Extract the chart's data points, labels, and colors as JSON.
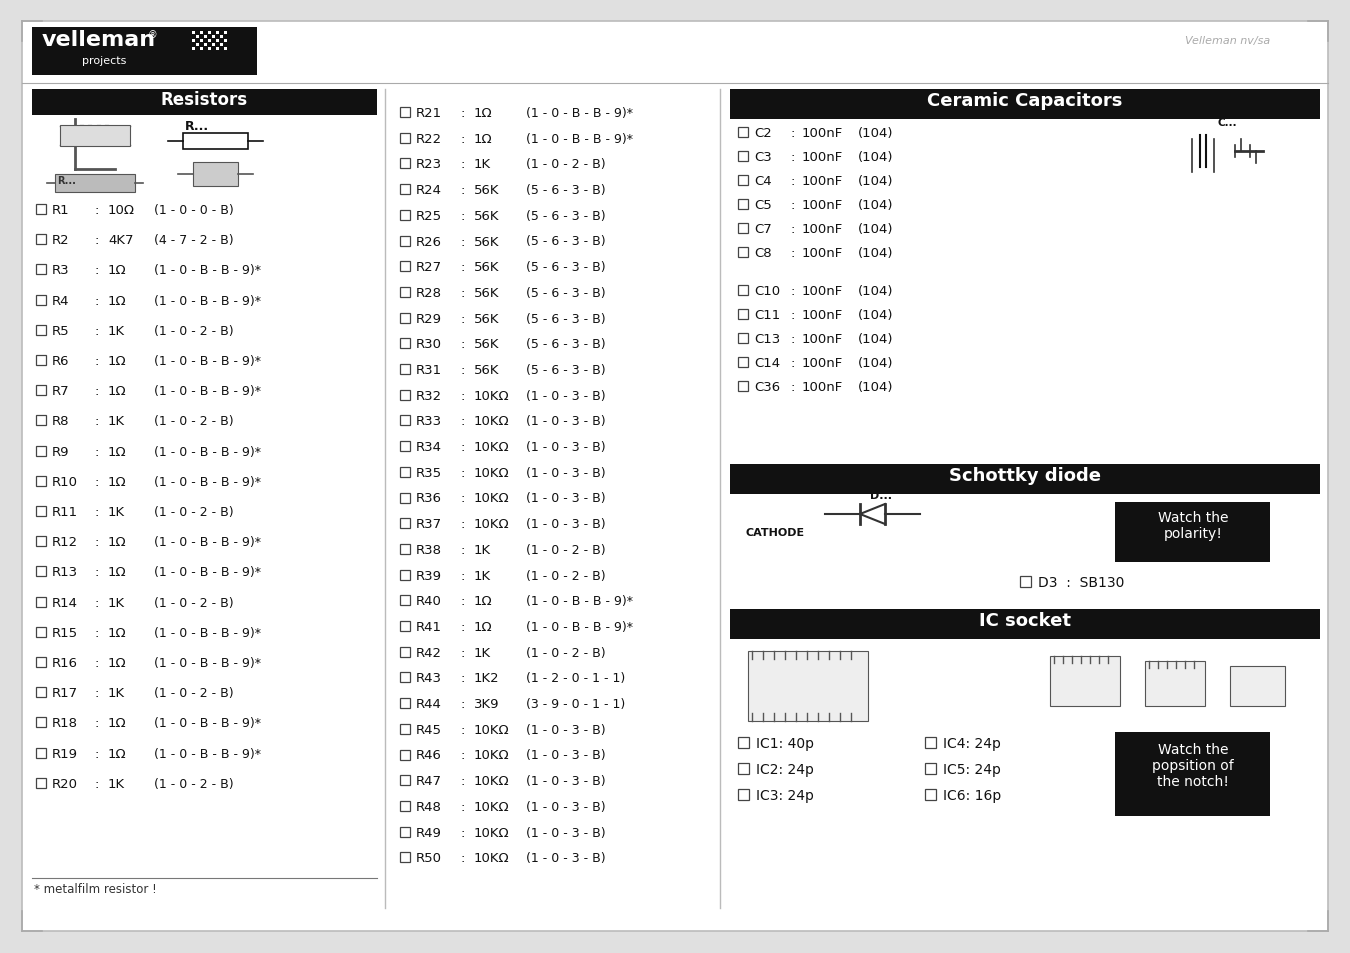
{
  "bg_color": "#ffffff",
  "border_color": "#bbbbbb",
  "header_bg": "#111111",
  "header_fg": "#ffffff",
  "body_fg": "#111111",
  "page_bg": "#e0e0e0",
  "resistors": [
    [
      "R1",
      "10Ω",
      "(1 - 0 - 0 - B)"
    ],
    [
      "R2",
      "4K7",
      "(4 - 7 - 2 - B)"
    ],
    [
      "R3",
      "1Ω",
      "(1 - 0 - B - B - 9)*"
    ],
    [
      "R4",
      "1Ω",
      "(1 - 0 - B - B - 9)*"
    ],
    [
      "R5",
      "1K",
      "(1 - 0 - 2 - B)"
    ],
    [
      "R6",
      "1Ω",
      "(1 - 0 - B - B - 9)*"
    ],
    [
      "R7",
      "1Ω",
      "(1 - 0 - B - B - 9)*"
    ],
    [
      "R8",
      "1K",
      "(1 - 0 - 2 - B)"
    ],
    [
      "R9",
      "1Ω",
      "(1 - 0 - B - B - 9)*"
    ],
    [
      "R10",
      "1Ω",
      "(1 - 0 - B - B - 9)*"
    ],
    [
      "R11",
      "1K",
      "(1 - 0 - 2 - B)"
    ],
    [
      "R12",
      "1Ω",
      "(1 - 0 - B - B - 9)*"
    ],
    [
      "R13",
      "1Ω",
      "(1 - 0 - B - B - 9)*"
    ],
    [
      "R14",
      "1K",
      "(1 - 0 - 2 - B)"
    ],
    [
      "R15",
      "1Ω",
      "(1 - 0 - B - B - 9)*"
    ],
    [
      "R16",
      "1Ω",
      "(1 - 0 - B - B - 9)*"
    ],
    [
      "R17",
      "1K",
      "(1 - 0 - 2 - B)"
    ],
    [
      "R18",
      "1Ω",
      "(1 - 0 - B - B - 9)*"
    ],
    [
      "R19",
      "1Ω",
      "(1 - 0 - B - B - 9)*"
    ],
    [
      "R20",
      "1K",
      "(1 - 0 - 2 - B)"
    ]
  ],
  "resistors2": [
    [
      "R21",
      "1Ω",
      "(1 - 0 - B - B - 9)*"
    ],
    [
      "R22",
      "1Ω",
      "(1 - 0 - B - B - 9)*"
    ],
    [
      "R23",
      "1K",
      "(1 - 0 - 2 - B)"
    ],
    [
      "R24",
      "56K",
      "(5 - 6 - 3 - B)"
    ],
    [
      "R25",
      "56K",
      "(5 - 6 - 3 - B)"
    ],
    [
      "R26",
      "56K",
      "(5 - 6 - 3 - B)"
    ],
    [
      "R27",
      "56K",
      "(5 - 6 - 3 - B)"
    ],
    [
      "R28",
      "56K",
      "(5 - 6 - 3 - B)"
    ],
    [
      "R29",
      "56K",
      "(5 - 6 - 3 - B)"
    ],
    [
      "R30",
      "56K",
      "(5 - 6 - 3 - B)"
    ],
    [
      "R31",
      "56K",
      "(5 - 6 - 3 - B)"
    ],
    [
      "R32",
      "10KΩ",
      "(1 - 0 - 3 - B)"
    ],
    [
      "R33",
      "10KΩ",
      "(1 - 0 - 3 - B)"
    ],
    [
      "R34",
      "10KΩ",
      "(1 - 0 - 3 - B)"
    ],
    [
      "R35",
      "10KΩ",
      "(1 - 0 - 3 - B)"
    ],
    [
      "R36",
      "10KΩ",
      "(1 - 0 - 3 - B)"
    ],
    [
      "R37",
      "10KΩ",
      "(1 - 0 - 3 - B)"
    ],
    [
      "R38",
      "1K",
      "(1 - 0 - 2 - B)"
    ],
    [
      "R39",
      "1K",
      "(1 - 0 - 2 - B)"
    ],
    [
      "R40",
      "1Ω",
      "(1 - 0 - B - B - 9)*"
    ],
    [
      "R41",
      "1Ω",
      "(1 - 0 - B - B - 9)*"
    ],
    [
      "R42",
      "1K",
      "(1 - 0 - 2 - B)"
    ],
    [
      "R43",
      "1K2",
      "(1 - 2 - 0 - 1 - 1)"
    ],
    [
      "R44",
      "3K9",
      "(3 - 9 - 0 - 1 - 1)"
    ],
    [
      "R45",
      "10KΩ",
      "(1 - 0 - 3 - B)"
    ],
    [
      "R46",
      "10KΩ",
      "(1 - 0 - 3 - B)"
    ],
    [
      "R47",
      "10KΩ",
      "(1 - 0 - 3 - B)"
    ],
    [
      "R48",
      "10KΩ",
      "(1 - 0 - 3 - B)"
    ],
    [
      "R49",
      "10KΩ",
      "(1 - 0 - 3 - B)"
    ],
    [
      "R50",
      "10KΩ",
      "(1 - 0 - 3 - B)"
    ]
  ],
  "capacitors_group1": [
    [
      "C2",
      "100nF",
      "(104)"
    ],
    [
      "C3",
      "100nF",
      "(104)"
    ],
    [
      "C4",
      "100nF",
      "(104)"
    ],
    [
      "C5",
      "100nF",
      "(104)"
    ],
    [
      "C7",
      "100nF",
      "(104)"
    ],
    [
      "C8",
      "100nF",
      "(104)"
    ]
  ],
  "capacitors_group2": [
    [
      "C10",
      "100nF",
      "(104)"
    ],
    [
      "C11",
      "100nF",
      "(104)"
    ],
    [
      "C13",
      "100nF",
      "(104)"
    ],
    [
      "C14",
      "100nF",
      "(104)"
    ],
    [
      "C36",
      "100nF",
      "(104)"
    ]
  ],
  "ic_entries": [
    [
      "IC1: 40p",
      "IC4: 24p"
    ],
    [
      "IC2: 24p",
      "IC5: 24p"
    ],
    [
      "IC3: 24p",
      "IC6: 16p"
    ]
  ],
  "footnote": "* metalfilm resistor !"
}
